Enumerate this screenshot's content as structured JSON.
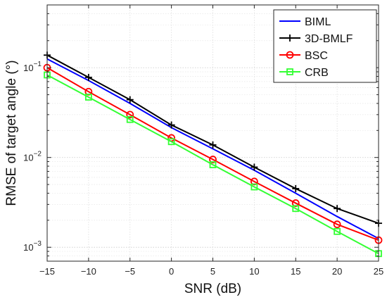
{
  "chart_data": {
    "type": "line",
    "title": "",
    "xlabel": "SNR (dB)",
    "ylabel": "RMSE of target angle (°)",
    "yscale": "log",
    "grid": "on",
    "legend_position": "top-right",
    "x": [
      -15,
      -10,
      -5,
      0,
      5,
      10,
      15,
      20,
      25
    ],
    "xlim": [
      -15,
      25
    ],
    "ylim": [
      0.0007,
      0.5
    ],
    "x_tick_labels": [
      "−15",
      "−10",
      "−5",
      "0",
      "5",
      "10",
      "15",
      "20",
      "25"
    ],
    "y_ticks": [
      {
        "base": "10",
        "exp": "−3",
        "value": 0.001
      },
      {
        "base": "10",
        "exp": "−2",
        "value": 0.01
      },
      {
        "base": "10",
        "exp": "−1",
        "value": 0.1
      }
    ],
    "series": [
      {
        "name": "BIML",
        "color": "#0000ff",
        "marker": "none",
        "values": [
          0.125,
          0.072,
          0.04,
          0.0215,
          0.0125,
          0.0072,
          0.004,
          0.0022,
          0.00125
        ]
      },
      {
        "name": "3D-BMLF",
        "color": "#000000",
        "marker": "plus",
        "values": [
          0.138,
          0.078,
          0.044,
          0.023,
          0.0138,
          0.0078,
          0.0045,
          0.0027,
          0.00185
        ]
      },
      {
        "name": "BSC",
        "color": "#ff0000",
        "marker": "circle",
        "values": [
          0.1,
          0.054,
          0.03,
          0.0165,
          0.0095,
          0.0054,
          0.0031,
          0.0018,
          0.0012
        ]
      },
      {
        "name": "CRB",
        "color": "#33ff33",
        "marker": "square",
        "values": [
          0.083,
          0.047,
          0.0265,
          0.015,
          0.0083,
          0.0047,
          0.0027,
          0.0015,
          0.00085
        ]
      }
    ]
  }
}
